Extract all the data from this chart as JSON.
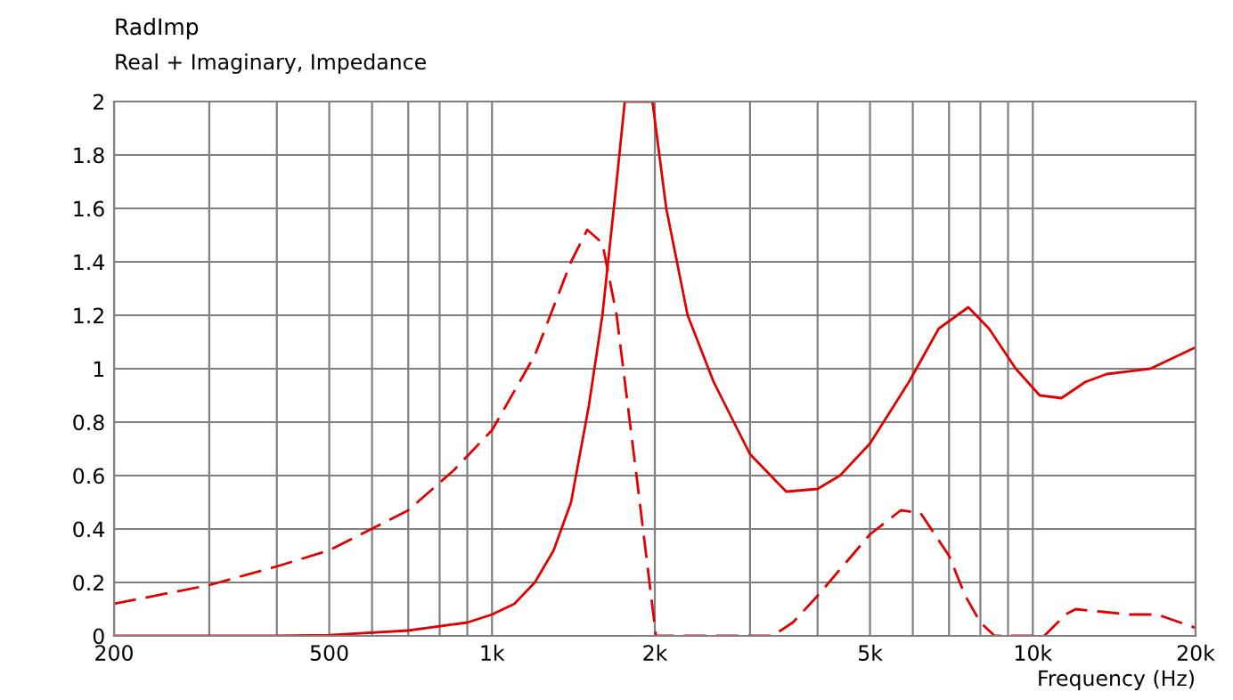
{
  "chart_data": {
    "type": "line",
    "title": "RadImp",
    "subtitle": "Real + Imaginary, Impedance",
    "xlabel": "Frequency (Hz)",
    "log": "x",
    "grid": true,
    "legend": false,
    "xlim": [
      200,
      20000
    ],
    "ylim": [
      0,
      2
    ],
    "xticks": [
      200,
      {
        "value": 300,
        "label": null
      },
      {
        "value": 400,
        "label": null
      },
      500,
      {
        "value": 600,
        "label": null
      },
      {
        "value": 700,
        "label": null
      },
      {
        "value": 800,
        "label": null
      },
      {
        "value": 900,
        "label": null
      },
      {
        "value": 1000,
        "label": "1k"
      },
      {
        "value": 2000,
        "label": "2k"
      },
      {
        "value": 3000,
        "label": null
      },
      {
        "value": 4000,
        "label": null
      },
      {
        "value": 5000,
        "label": "5k"
      },
      {
        "value": 6000,
        "label": null
      },
      {
        "value": 7000,
        "label": null
      },
      {
        "value": 8000,
        "label": null
      },
      {
        "value": 9000,
        "label": null
      },
      {
        "value": 10000,
        "label": "10k"
      },
      {
        "value": 20000,
        "label": "20k"
      }
    ],
    "yticks": [
      0,
      0.2,
      0.4,
      0.6,
      0.8,
      1,
      1.2,
      1.4,
      1.6,
      1.8,
      2
    ],
    "series": [
      {
        "color": "#e00000",
        "line_style": "solid",
        "x": [
          200,
          300,
          400,
          500,
          700,
          900,
          1000,
          1100,
          1200,
          1300,
          1400,
          1510,
          1600,
          1700,
          1760,
          1980,
          2100,
          2300,
          2570,
          3000,
          3500,
          4000,
          4400,
          5000,
          5900,
          6700,
          7600,
          8300,
          9300,
          10300,
          11300,
          12500,
          13700,
          16500,
          20000
        ],
        "values": [
          0,
          0,
          0,
          0.003,
          0.02,
          0.05,
          0.08,
          0.12,
          0.2,
          0.32,
          0.5,
          0.86,
          1.2,
          1.7,
          2,
          2,
          1.6,
          1.2,
          0.95,
          0.68,
          0.54,
          0.55,
          0.6,
          0.72,
          0.95,
          1.15,
          1.23,
          1.15,
          1.0,
          0.9,
          0.89,
          0.95,
          0.98,
          1.0,
          1.08
        ]
      },
      {
        "color": "#e00000",
        "line_style": "dashed",
        "x": [
          200,
          300,
          400,
          500,
          700,
          850,
          1000,
          1200,
          1400,
          1500,
          1600,
          1700,
          1850,
          2010,
          2500,
          3300,
          3600,
          4000,
          5000,
          5700,
          6200,
          7000,
          7500,
          8000,
          8500,
          10500,
          11500,
          12000,
          13500,
          15000,
          17000,
          20000
        ],
        "values": [
          0.12,
          0.19,
          0.26,
          0.32,
          0.47,
          0.62,
          0.77,
          1.05,
          1.4,
          1.52,
          1.47,
          1.2,
          0.6,
          0,
          0,
          0,
          0.05,
          0.15,
          0.38,
          0.47,
          0.46,
          0.3,
          0.15,
          0.05,
          0,
          0,
          0.08,
          0.1,
          0.09,
          0.08,
          0.08,
          0.03
        ]
      }
    ]
  }
}
